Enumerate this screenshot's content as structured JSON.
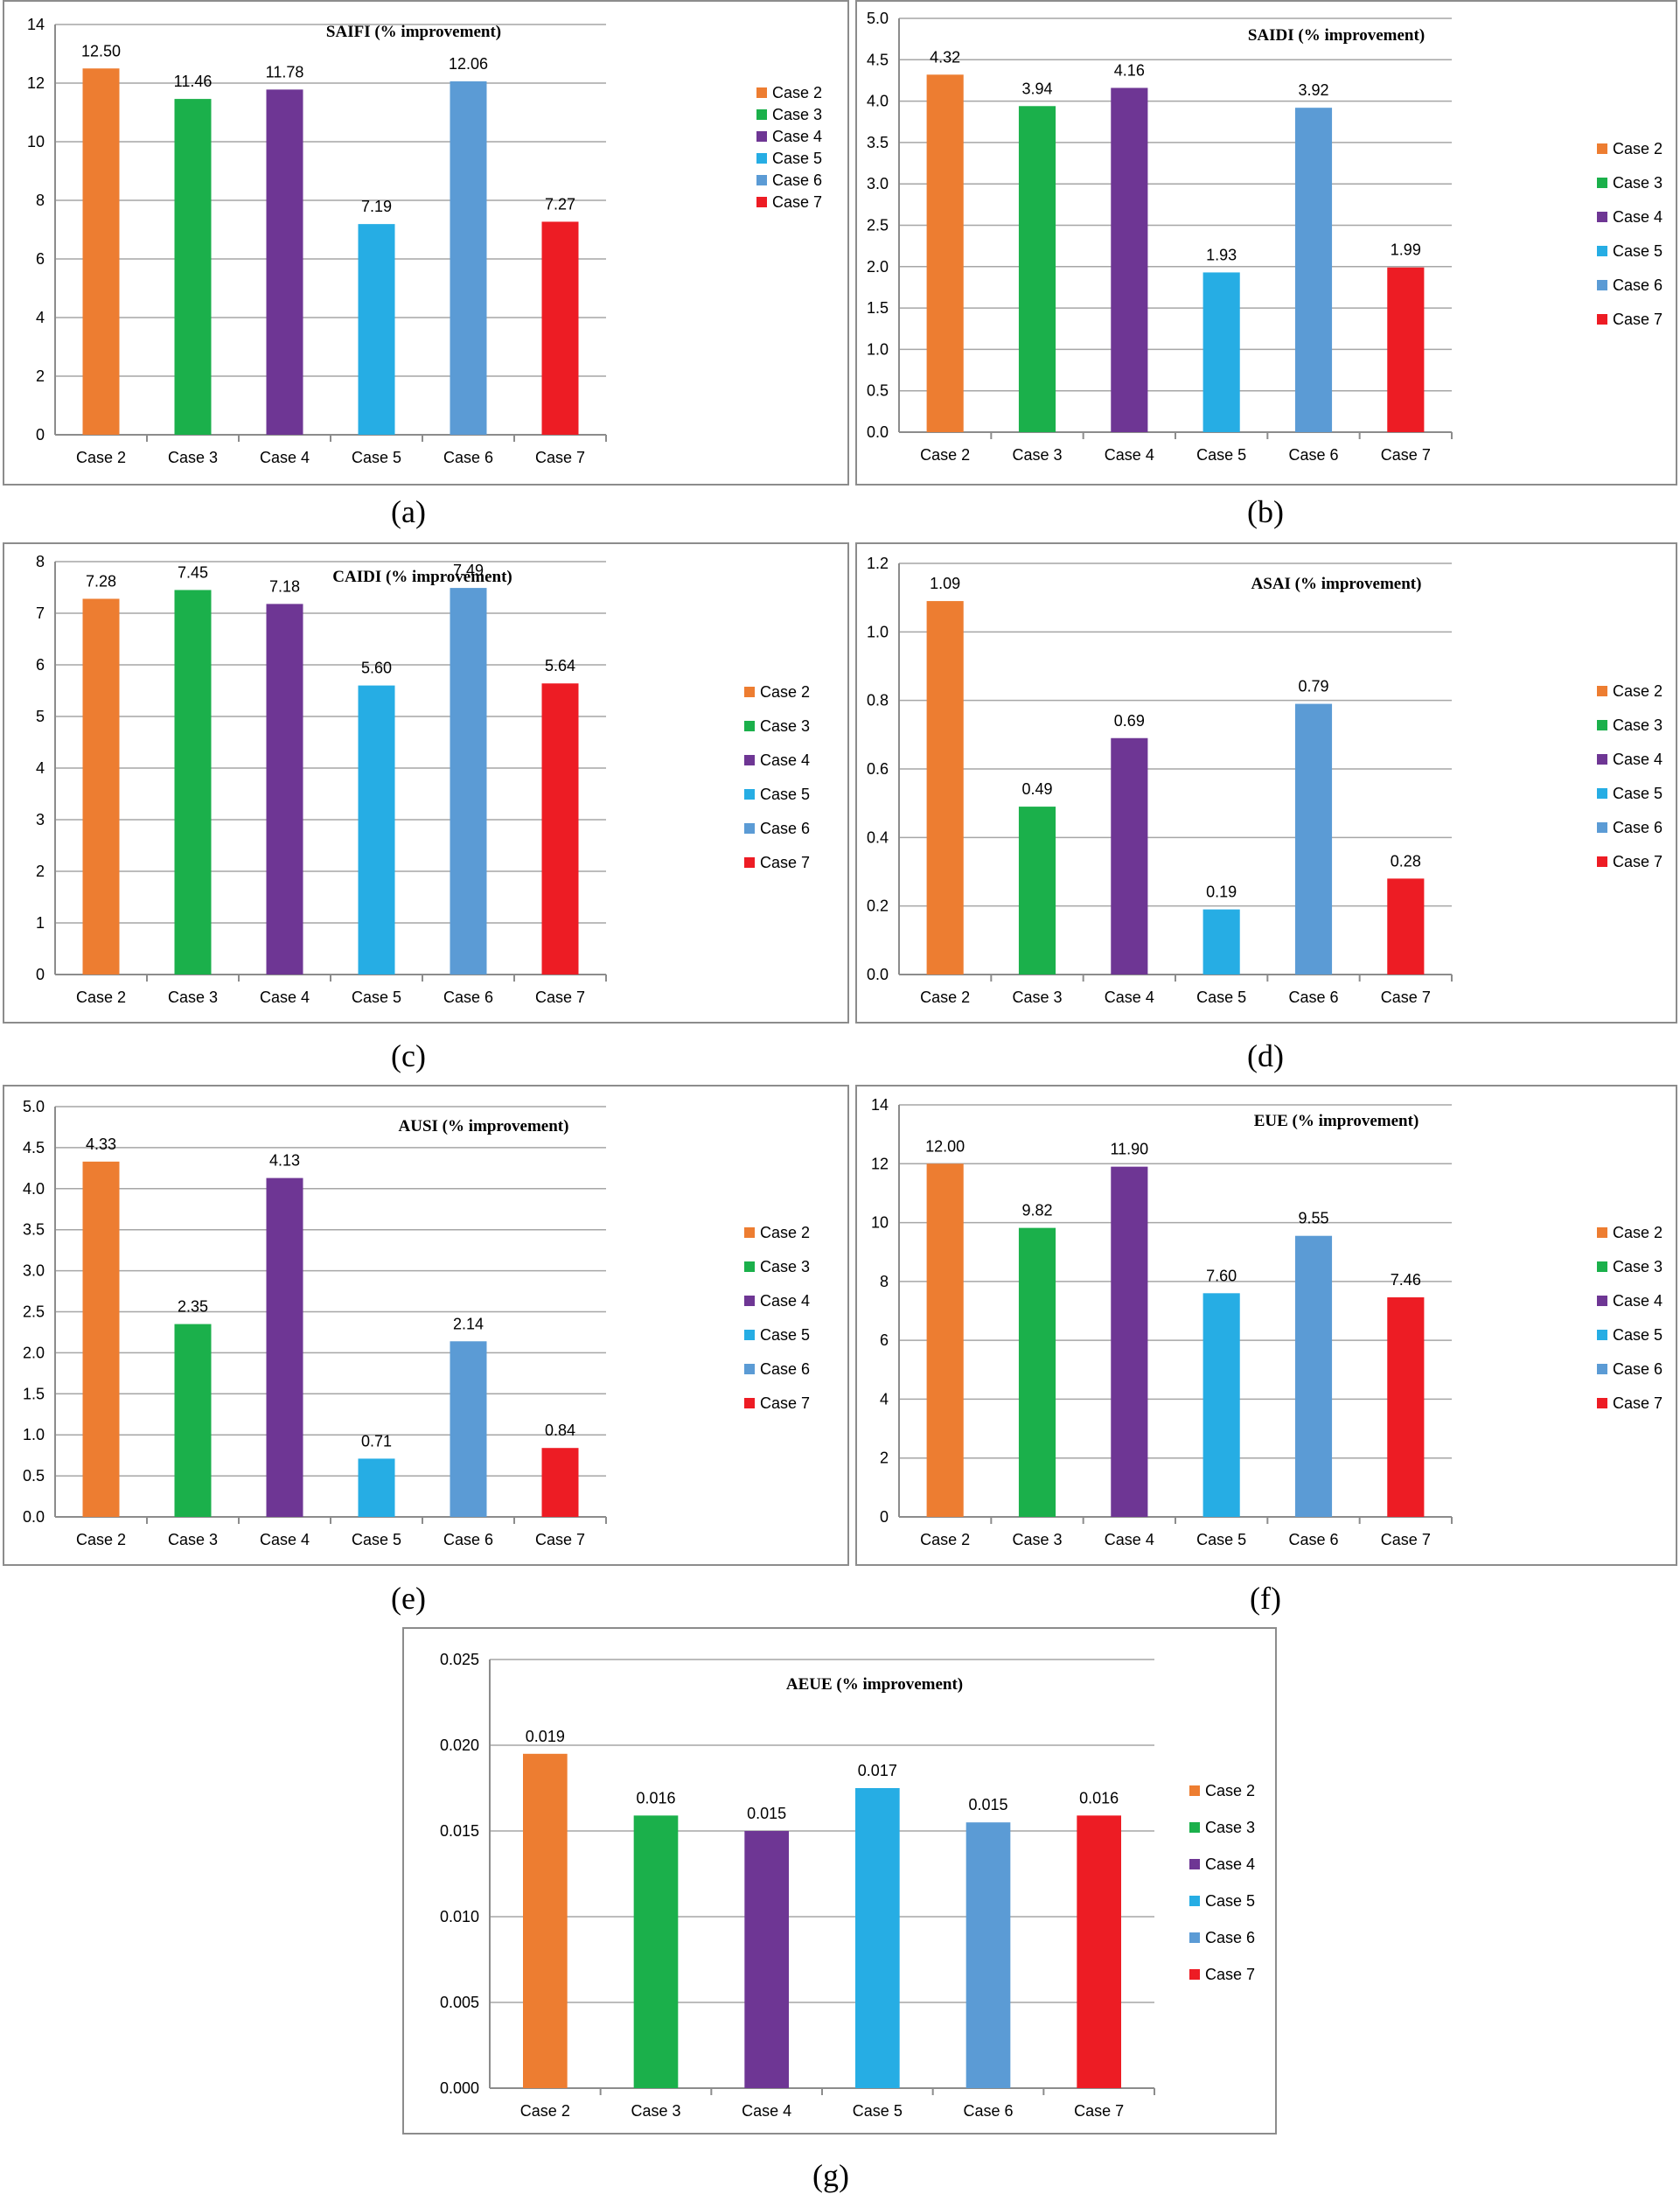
{
  "legend_colors": {
    "Case 2": "#ED7D31",
    "Case 3": "#1BB04B",
    "Case 4": "#6E3694",
    "Case 5": "#26ADE4",
    "Case 6": "#5B9BD5",
    "Case 7": "#ED1C24"
  },
  "chart_data": [
    {
      "id": "a",
      "caption": "(a)",
      "type": "bar",
      "title": "SAIFI (% improvement)",
      "categories": [
        "Case 2",
        "Case 3",
        "Case 4",
        "Case 5",
        "Case 6",
        "Case 7"
      ],
      "values": [
        12.5,
        11.46,
        11.78,
        7.19,
        12.06,
        7.27
      ],
      "value_labels": [
        "12.50",
        "11.46",
        "11.78",
        "7.19",
        "12.06",
        "7.27"
      ],
      "ylim": [
        0,
        14
      ],
      "yticks": [
        "0",
        "2",
        "4",
        "6",
        "8",
        "10",
        "12",
        "14"
      ],
      "grid": true,
      "legend": "right"
    },
    {
      "id": "b",
      "caption": "(b)",
      "type": "bar",
      "title": "SAIDI (% improvement)",
      "categories": [
        "Case 2",
        "Case 3",
        "Case 4",
        "Case 5",
        "Case 6",
        "Case 7"
      ],
      "values": [
        4.32,
        3.94,
        4.16,
        1.93,
        3.92,
        1.99
      ],
      "value_labels": [
        "4.32",
        "3.94",
        "4.16",
        "1.93",
        "3.92",
        "1.99"
      ],
      "ylim": [
        0,
        5
      ],
      "yticks": [
        "0.0",
        "0.5",
        "1.0",
        "1.5",
        "2.0",
        "2.5",
        "3.0",
        "3.5",
        "4.0",
        "4.5",
        "5.0"
      ],
      "grid": true,
      "legend": "right"
    },
    {
      "id": "c",
      "caption": "(c)",
      "type": "bar",
      "title": "CAIDI (% improvement)",
      "categories": [
        "Case 2",
        "Case 3",
        "Case 4",
        "Case 5",
        "Case 6",
        "Case 7"
      ],
      "values": [
        7.28,
        7.45,
        7.18,
        5.6,
        7.49,
        5.64
      ],
      "value_labels": [
        "7.28",
        "7.45",
        "7.18",
        "5.60",
        "7.49",
        "5.64"
      ],
      "ylim": [
        0,
        8
      ],
      "yticks": [
        "0",
        "1",
        "2",
        "3",
        "4",
        "5",
        "6",
        "7",
        "8"
      ],
      "grid": true,
      "legend": "right"
    },
    {
      "id": "d",
      "caption": "(d)",
      "type": "bar",
      "title": "ASAI (% improvement)",
      "categories": [
        "Case 2",
        "Case 3",
        "Case 4",
        "Case 5",
        "Case 6",
        "Case 7"
      ],
      "values": [
        1.09,
        0.49,
        0.69,
        0.19,
        0.79,
        0.28
      ],
      "value_labels": [
        "1.09",
        "0.49",
        "0.69",
        "0.19",
        "0.79",
        "0.28"
      ],
      "ylim": [
        0,
        1.2
      ],
      "yticks": [
        "0.0",
        "0.2",
        "0.4",
        "0.6",
        "0.8",
        "1.0",
        "1.2"
      ],
      "grid": true,
      "legend": "right"
    },
    {
      "id": "e",
      "caption": "(e)",
      "type": "bar",
      "title": "AUSI (% improvement)",
      "categories": [
        "Case 2",
        "Case 3",
        "Case 4",
        "Case 5",
        "Case 6",
        "Case 7"
      ],
      "values": [
        4.33,
        2.35,
        4.13,
        0.71,
        2.14,
        0.84
      ],
      "value_labels": [
        "4.33",
        "2.35",
        "4.13",
        "0.71",
        "2.14",
        "0.84"
      ],
      "ylim": [
        0,
        5
      ],
      "yticks": [
        "0.0",
        "0.5",
        "1.0",
        "1.5",
        "2.0",
        "2.5",
        "3.0",
        "3.5",
        "4.0",
        "4.5",
        "5.0"
      ],
      "grid": true,
      "legend": "right"
    },
    {
      "id": "f",
      "caption": "(f)",
      "type": "bar",
      "title": "EUE (% improvement)",
      "categories": [
        "Case 2",
        "Case 3",
        "Case 4",
        "Case 5",
        "Case 6",
        "Case 7"
      ],
      "values": [
        12.0,
        9.82,
        11.9,
        7.6,
        9.55,
        7.46
      ],
      "value_labels": [
        "12.00",
        "9.82",
        "11.90",
        "7.60",
        "9.55",
        "7.46"
      ],
      "ylim": [
        0,
        14
      ],
      "yticks": [
        "0",
        "2",
        "4",
        "6",
        "8",
        "10",
        "12",
        "14"
      ],
      "grid": true,
      "legend": "right"
    },
    {
      "id": "g",
      "caption": "(g)",
      "type": "bar",
      "title": "AEUE (% improvement)",
      "categories": [
        "Case 2",
        "Case 3",
        "Case 4",
        "Case 5",
        "Case 6",
        "Case 7"
      ],
      "values": [
        0.0195,
        0.0159,
        0.015,
        0.0175,
        0.0155,
        0.0159
      ],
      "value_labels": [
        "0.019",
        "0.016",
        "0.015",
        "0.017",
        "0.015",
        "0.016"
      ],
      "ylim": [
        0,
        0.025
      ],
      "yticks": [
        "0.000",
        "0.005",
        "0.010",
        "0.015",
        "0.020",
        "0.025"
      ],
      "grid": true,
      "legend": "right"
    }
  ]
}
